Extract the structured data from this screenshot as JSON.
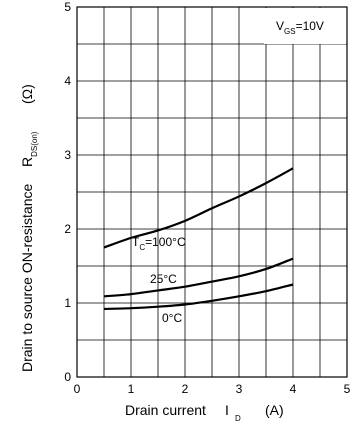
{
  "chart_data": {
    "type": "line",
    "xlabel": "Drain current",
    "xsymbol": "I",
    "xsymbol_sub": "D",
    "xunit": "(A)",
    "ylabel": "Drain to source ON-resistance",
    "ysymbol": "R",
    "ysymbol_sub": "DS(on)",
    "yunit": "(Ω)",
    "xlim": [
      0,
      5
    ],
    "ylim": [
      0,
      5
    ],
    "xticks": [
      "0",
      "1",
      "2",
      "3",
      "4",
      "5"
    ],
    "yticks": [
      "0",
      "1",
      "2",
      "3",
      "4",
      "5"
    ],
    "grid": "on (minor 0.5 in x and y)",
    "condition": {
      "prefix": "V",
      "sub": "GS",
      "text": "=10V"
    },
    "series": [
      {
        "label_prefix": "T",
        "label_sub": "C",
        "label_text": "=100°C",
        "x": [
          0.5,
          1,
          1.5,
          2,
          2.5,
          3,
          3.5,
          4
        ],
        "y": [
          1.75,
          1.88,
          1.98,
          2.11,
          2.28,
          2.44,
          2.62,
          2.82
        ]
      },
      {
        "label_prefix": "",
        "label_sub": "",
        "label_text": "25°C",
        "x": [
          0.5,
          1,
          1.5,
          2,
          2.5,
          3,
          3.5,
          4
        ],
        "y": [
          1.09,
          1.12,
          1.17,
          1.22,
          1.29,
          1.36,
          1.46,
          1.6
        ]
      },
      {
        "label_prefix": "",
        "label_sub": "",
        "label_text": "0°C",
        "x": [
          0.5,
          1,
          1.5,
          2,
          2.5,
          3,
          3.5,
          4
        ],
        "y": [
          0.92,
          0.93,
          0.95,
          0.98,
          1.03,
          1.09,
          1.16,
          1.25
        ]
      }
    ]
  }
}
